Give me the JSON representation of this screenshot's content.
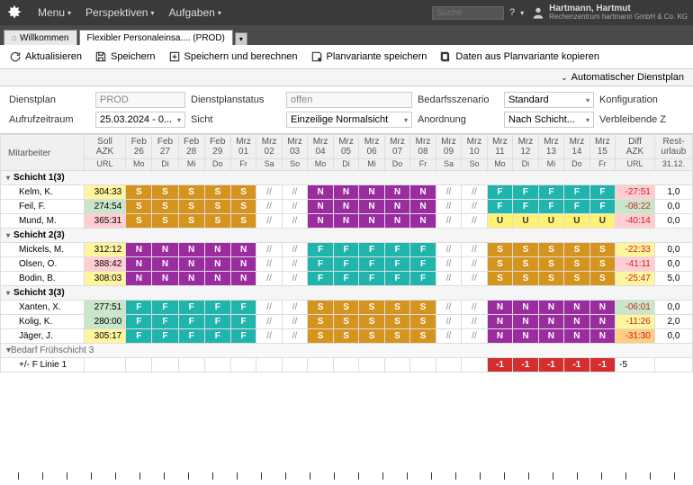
{
  "topbar": {
    "menus": [
      "Menu",
      "Perspektiven",
      "Aufgaben"
    ],
    "search_placeholder": "Suche",
    "help": "?",
    "user_name": "Hartmann, Hartmut",
    "user_company": "Rechenzentrum hartmann GmbH & Co. KG"
  },
  "tabs": {
    "welcome": "Willkommen",
    "active": "Flexibler Personaleinsa.... (PROD)"
  },
  "toolbar": {
    "refresh": "Aktualisieren",
    "save": "Speichern",
    "savecalc": "Speichern und berechnen",
    "saveplan": "Planvariante speichern",
    "copyplan": "Daten aus Planvariante kopieren"
  },
  "autobar": {
    "label": "Automatischer Dienstplan"
  },
  "filters": {
    "dienstplan_lbl": "Dienstplan",
    "dienstplan_val": "PROD",
    "status_lbl": "Dienstplanstatus",
    "status_val": "offen",
    "szenario_lbl": "Bedarfsszenario",
    "szenario_val": "Standard",
    "konfig_lbl": "Konfiguration",
    "zeitraum_lbl": "Aufrufzeitraum",
    "zeitraum_val": "25.03.2024 - 0...",
    "sicht_lbl": "Sicht",
    "sicht_val": "Einzeilige Normalsicht",
    "anordnung_lbl": "Anordnung",
    "anordnung_val": "Nach Schicht...",
    "verbleibend_lbl": "Verbleibende Z"
  },
  "headers": {
    "mitarbeiter": "Mitarbeiter",
    "soll1": "Soll",
    "soll2": "AZK",
    "soll3": "URL",
    "diff1": "Diff",
    "diff2": "AZK",
    "diff3": "URL",
    "rest1": "Rest-",
    "rest2": "urlaub",
    "rest3": "31.12.",
    "months": [
      "Feb",
      "Feb",
      "Feb",
      "Feb",
      "Mrz",
      "Mrz",
      "Mrz",
      "Mrz",
      "Mrz",
      "Mrz",
      "Mrz",
      "Mrz",
      "Mrz",
      "Mrz",
      "Mrz",
      "Mrz",
      "Mrz",
      "Mrz",
      "Mrz"
    ],
    "days": [
      "26",
      "27",
      "28",
      "29",
      "01",
      "02",
      "03",
      "04",
      "05",
      "06",
      "07",
      "08",
      "09",
      "10",
      "11",
      "12",
      "13",
      "14",
      "15"
    ],
    "wdays": [
      "Mo",
      "Di",
      "Mi",
      "Do",
      "Fr",
      "Sa",
      "So",
      "Mo",
      "Di",
      "Mi",
      "Do",
      "Fr",
      "Sa",
      "So",
      "Mo",
      "Di",
      "Mi",
      "Do",
      "Fr"
    ]
  },
  "groups": [
    {
      "name": "Schicht 1(3)",
      "rows": [
        {
          "name": "Kelm, K.",
          "soll": "304:33",
          "sollcls": "soll-yellow",
          "cells": [
            "S",
            "S",
            "S",
            "S",
            "S",
            "//",
            "//",
            "N",
            "N",
            "N",
            "N",
            "N",
            "//",
            "//",
            "F",
            "F",
            "F",
            "F",
            "F"
          ],
          "diff": "-27:51",
          "diffcls": "soll-red",
          "rest": "1,0"
        },
        {
          "name": "Feil, F.",
          "soll": "274:54",
          "sollcls": "soll-green",
          "cells": [
            "S",
            "S",
            "S",
            "S",
            "S",
            "//",
            "//",
            "N",
            "N",
            "N",
            "N",
            "N",
            "//",
            "//",
            "F",
            "F",
            "F",
            "F",
            "F"
          ],
          "diff": "-08:22",
          "diffcls": "diff-green",
          "rest": "0,0"
        },
        {
          "name": "Mund, M.",
          "soll": "365:31",
          "sollcls": "soll-red",
          "cells": [
            "S",
            "S",
            "S",
            "S",
            "S",
            "//",
            "//",
            "N",
            "N",
            "N",
            "N",
            "N",
            "//",
            "//",
            "U",
            "U",
            "U",
            "U",
            "U"
          ],
          "diff": "-40:14",
          "diffcls": "soll-red",
          "rest": "0,0"
        }
      ]
    },
    {
      "name": "Schicht 2(3)",
      "rows": [
        {
          "name": "Mickels, M.",
          "soll": "312:12",
          "sollcls": "soll-yellow",
          "cells": [
            "N",
            "N",
            "N",
            "N",
            "N",
            "//",
            "//",
            "F",
            "F",
            "F",
            "F",
            "F",
            "//",
            "//",
            "S",
            "S",
            "S",
            "S",
            "S"
          ],
          "diff": "-22:33",
          "diffcls": "soll-yellow",
          "rest": "0,0"
        },
        {
          "name": "Olsen, O.",
          "soll": "388:42",
          "sollcls": "soll-red",
          "cells": [
            "N",
            "N",
            "N",
            "N",
            "N",
            "//",
            "//",
            "F",
            "F",
            "F",
            "F",
            "F",
            "//",
            "//",
            "S",
            "S",
            "S",
            "S",
            "S"
          ],
          "diff": "-41:11",
          "diffcls": "soll-red",
          "rest": "0,0"
        },
        {
          "name": "Bodin, B.",
          "soll": "308:03",
          "sollcls": "soll-yellow",
          "cells": [
            "N",
            "N",
            "N",
            "N",
            "N",
            "//",
            "//",
            "F",
            "F",
            "F",
            "F",
            "F",
            "//",
            "//",
            "S",
            "S",
            "S",
            "S",
            "S"
          ],
          "diff": "-25:47",
          "diffcls": "soll-yellow",
          "rest": "5,0"
        }
      ]
    },
    {
      "name": "Schicht 3(3)",
      "rows": [
        {
          "name": "Xanten, X.",
          "soll": "277:51",
          "sollcls": "soll-green",
          "cells": [
            "F",
            "F",
            "F",
            "F",
            "F",
            "//",
            "//",
            "S",
            "S",
            "S",
            "S",
            "S",
            "//",
            "//",
            "N",
            "N",
            "N",
            "N",
            "N"
          ],
          "diff": "-06:01",
          "diffcls": "diff-green",
          "rest": "0,0"
        },
        {
          "name": "Kolig, K.",
          "soll": "280:00",
          "sollcls": "soll-green",
          "cells": [
            "F",
            "F",
            "F",
            "F",
            "F",
            "//",
            "//",
            "S",
            "S",
            "S",
            "S",
            "S",
            "//",
            "//",
            "N",
            "N",
            "N",
            "N",
            "N"
          ],
          "diff": "-11:26",
          "diffcls": "soll-yellow",
          "rest": "2,0"
        },
        {
          "name": "Jäger, J.",
          "soll": "305:17",
          "sollcls": "soll-yellow",
          "cells": [
            "F",
            "F",
            "F",
            "F",
            "F",
            "//",
            "//",
            "S",
            "S",
            "S",
            "S",
            "S",
            "//",
            "//",
            "N",
            "N",
            "N",
            "N",
            "N"
          ],
          "diff": "-31:30",
          "diffcls": "soll-orange",
          "rest": "0,0"
        }
      ]
    }
  ],
  "demand": {
    "label": "Bedarf Frühschicht 3",
    "line": "+/- F Linie 1",
    "vals": [
      "",
      "",
      "",
      "",
      "",
      "",
      "",
      "",
      "",
      "",
      "",
      "",
      "",
      "",
      "-1",
      "-1",
      "-1",
      "-1",
      "-1"
    ],
    "total": "-5"
  },
  "colors": {
    "S": "#d4941e",
    "N": "#9a2ca0",
    "F": "#1fb5ad",
    "U": "#fff176",
    "neg": "#d32f2f"
  }
}
